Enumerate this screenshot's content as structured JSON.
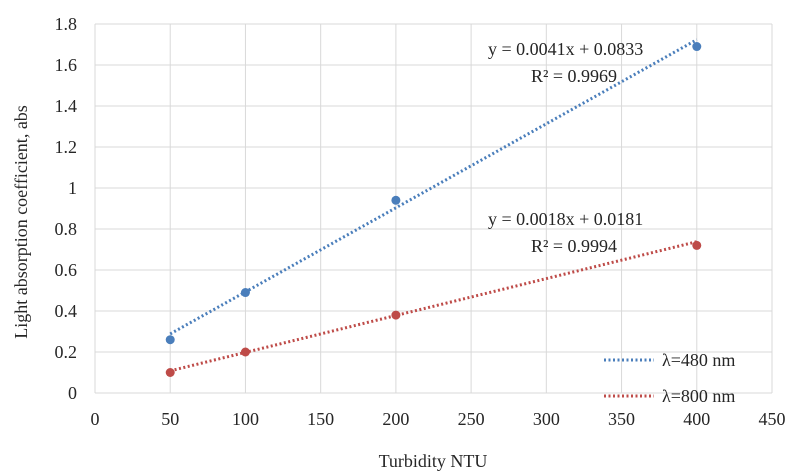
{
  "chart_data": {
    "type": "scatter",
    "title": "",
    "xlabel": "Turbidity NTU",
    "ylabel": "Light absorption coefficient, abs",
    "xlim": [
      0,
      450
    ],
    "ylim": [
      0,
      1.8
    ],
    "x_ticks": [
      "0",
      "50",
      "100",
      "150",
      "200",
      "250",
      "300",
      "350",
      "400",
      "450"
    ],
    "y_ticks": [
      "0",
      "0.2",
      "0.4",
      "0.6",
      "0.8",
      "1",
      "1.2",
      "1.4",
      "1.6",
      "1.8"
    ],
    "grid": true,
    "legend_position": "bottom-right",
    "series": [
      {
        "name": "λ=480 nm",
        "color": "#4a7ebb",
        "x": [
          50,
          100,
          200,
          400
        ],
        "y": [
          0.26,
          0.49,
          0.94,
          1.69
        ],
        "trendline": {
          "type": "linear",
          "slope": 0.0041,
          "intercept": 0.0833
        },
        "equation": "y = 0.0041x + 0.0833",
        "r2": "R² = 0.9969"
      },
      {
        "name": "λ=800 nm",
        "color": "#be4b48",
        "x": [
          50,
          100,
          200,
          400
        ],
        "y": [
          0.1,
          0.2,
          0.38,
          0.72
        ],
        "trendline": {
          "type": "linear",
          "slope": 0.0018,
          "intercept": 0.0181
        },
        "equation": "y = 0.0018x + 0.0181",
        "r2": "R² = 0.9994"
      }
    ]
  }
}
